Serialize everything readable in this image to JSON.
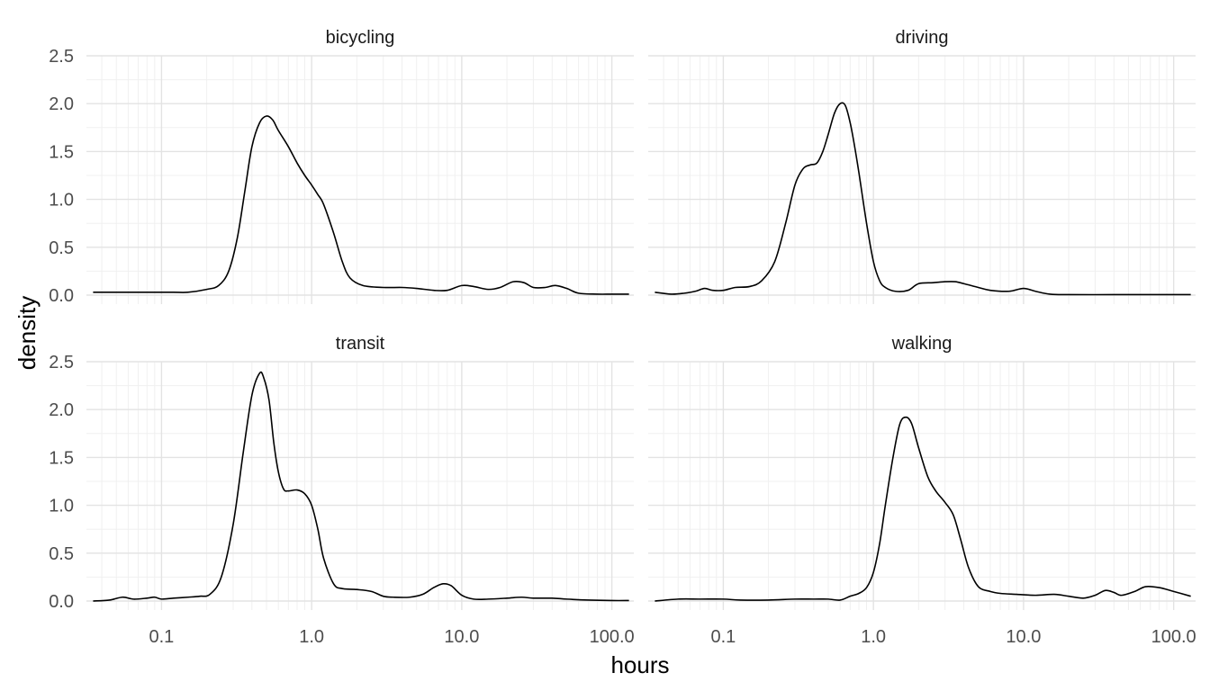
{
  "chart_data": {
    "type": "line",
    "kind": "faceted density plot",
    "xlabel": "hours",
    "ylabel": "density",
    "x_scale": "log10",
    "xlim": [
      0.0316,
      140
    ],
    "ylim": [
      0,
      2.5
    ],
    "x_ticks": [
      0.1,
      1,
      10,
      100
    ],
    "x_tick_labels": [
      "0.1",
      "1.0",
      "10.0",
      "100.0"
    ],
    "y_ticks": [
      0,
      0.5,
      1,
      1.5,
      2,
      2.5
    ],
    "y_tick_labels": [
      "0.0",
      "0.5",
      "1.0",
      "1.5",
      "2.0",
      "2.5"
    ],
    "grid": true,
    "facet_layout": "2x2",
    "panels": [
      {
        "strip": "bicycling",
        "x": [
          0.035,
          0.05,
          0.08,
          0.12,
          0.15,
          0.2,
          0.24,
          0.28,
          0.32,
          0.36,
          0.4,
          0.45,
          0.5,
          0.55,
          0.6,
          0.7,
          0.8,
          0.9,
          1.0,
          1.1,
          1.2,
          1.4,
          1.6,
          1.8,
          2.2,
          3.0,
          4.0,
          5.0,
          6.5,
          8.0,
          10.0,
          12.0,
          15.0,
          18.0,
          22.0,
          26.0,
          30.0,
          36.0,
          42.0,
          50.0,
          60.0,
          80.0,
          100.0,
          130.0
        ],
        "y": [
          0.03,
          0.03,
          0.03,
          0.03,
          0.03,
          0.06,
          0.1,
          0.25,
          0.6,
          1.1,
          1.55,
          1.8,
          1.87,
          1.83,
          1.72,
          1.55,
          1.38,
          1.25,
          1.15,
          1.05,
          0.95,
          0.65,
          0.35,
          0.18,
          0.1,
          0.08,
          0.08,
          0.07,
          0.05,
          0.05,
          0.1,
          0.09,
          0.06,
          0.08,
          0.14,
          0.13,
          0.08,
          0.08,
          0.1,
          0.07,
          0.02,
          0.01,
          0.01,
          0.01
        ]
      },
      {
        "strip": "driving",
        "x": [
          0.035,
          0.045,
          0.055,
          0.065,
          0.075,
          0.085,
          0.1,
          0.12,
          0.15,
          0.18,
          0.22,
          0.26,
          0.3,
          0.34,
          0.38,
          0.42,
          0.46,
          0.5,
          0.55,
          0.6,
          0.65,
          0.7,
          0.75,
          0.8,
          0.9,
          1.0,
          1.1,
          1.2,
          1.4,
          1.7,
          2.0,
          2.5,
          3.0,
          3.5,
          4.0,
          5.0,
          6.0,
          8.0,
          10.0,
          12.0,
          15.0,
          20.0,
          40.0,
          70.0,
          130.0
        ],
        "y": [
          0.03,
          0.01,
          0.02,
          0.04,
          0.07,
          0.05,
          0.05,
          0.08,
          0.09,
          0.15,
          0.35,
          0.75,
          1.15,
          1.32,
          1.36,
          1.38,
          1.5,
          1.68,
          1.9,
          2.0,
          1.98,
          1.8,
          1.55,
          1.28,
          0.75,
          0.35,
          0.15,
          0.08,
          0.04,
          0.05,
          0.12,
          0.13,
          0.14,
          0.14,
          0.12,
          0.08,
          0.05,
          0.04,
          0.07,
          0.04,
          0.01,
          0.005,
          0.005,
          0.005,
          0.005
        ]
      },
      {
        "strip": "transit",
        "x": [
          0.035,
          0.045,
          0.055,
          0.065,
          0.08,
          0.09,
          0.1,
          0.12,
          0.15,
          0.18,
          0.21,
          0.25,
          0.3,
          0.35,
          0.4,
          0.45,
          0.48,
          0.52,
          0.56,
          0.6,
          0.65,
          0.7,
          0.8,
          0.9,
          1.0,
          1.1,
          1.2,
          1.4,
          1.6,
          2.0,
          2.5,
          3.0,
          3.5,
          4.5,
          5.5,
          6.5,
          7.5,
          8.5,
          10.0,
          12.0,
          15.0,
          20.0,
          25.0,
          30.0,
          40.0,
          50.0,
          70.0,
          100.0,
          130.0
        ],
        "y": [
          0.0,
          0.01,
          0.04,
          0.02,
          0.03,
          0.04,
          0.02,
          0.03,
          0.04,
          0.05,
          0.07,
          0.25,
          0.8,
          1.55,
          2.15,
          2.38,
          2.33,
          2.1,
          1.65,
          1.35,
          1.17,
          1.15,
          1.16,
          1.12,
          1.0,
          0.75,
          0.45,
          0.18,
          0.13,
          0.12,
          0.1,
          0.05,
          0.04,
          0.04,
          0.07,
          0.14,
          0.18,
          0.16,
          0.06,
          0.02,
          0.02,
          0.03,
          0.04,
          0.03,
          0.03,
          0.02,
          0.01,
          0.005,
          0.005
        ]
      },
      {
        "strip": "walking",
        "x": [
          0.035,
          0.05,
          0.07,
          0.1,
          0.13,
          0.2,
          0.3,
          0.4,
          0.5,
          0.6,
          0.7,
          0.8,
          0.9,
          1.0,
          1.1,
          1.2,
          1.35,
          1.5,
          1.65,
          1.8,
          2.0,
          2.3,
          2.6,
          3.0,
          3.4,
          3.8,
          4.3,
          5.0,
          6.0,
          7.0,
          9.0,
          12.0,
          16.0,
          20.0,
          25.0,
          30.0,
          35.0,
          40.0,
          45.0,
          55.0,
          65.0,
          80.0,
          100.0,
          130.0
        ],
        "y": [
          0.0,
          0.02,
          0.02,
          0.02,
          0.01,
          0.01,
          0.02,
          0.02,
          0.02,
          0.01,
          0.05,
          0.08,
          0.14,
          0.3,
          0.6,
          1.0,
          1.5,
          1.85,
          1.92,
          1.85,
          1.6,
          1.3,
          1.15,
          1.03,
          0.9,
          0.65,
          0.35,
          0.15,
          0.1,
          0.08,
          0.07,
          0.06,
          0.07,
          0.05,
          0.03,
          0.06,
          0.11,
          0.09,
          0.06,
          0.1,
          0.15,
          0.14,
          0.1,
          0.05
        ]
      }
    ]
  }
}
